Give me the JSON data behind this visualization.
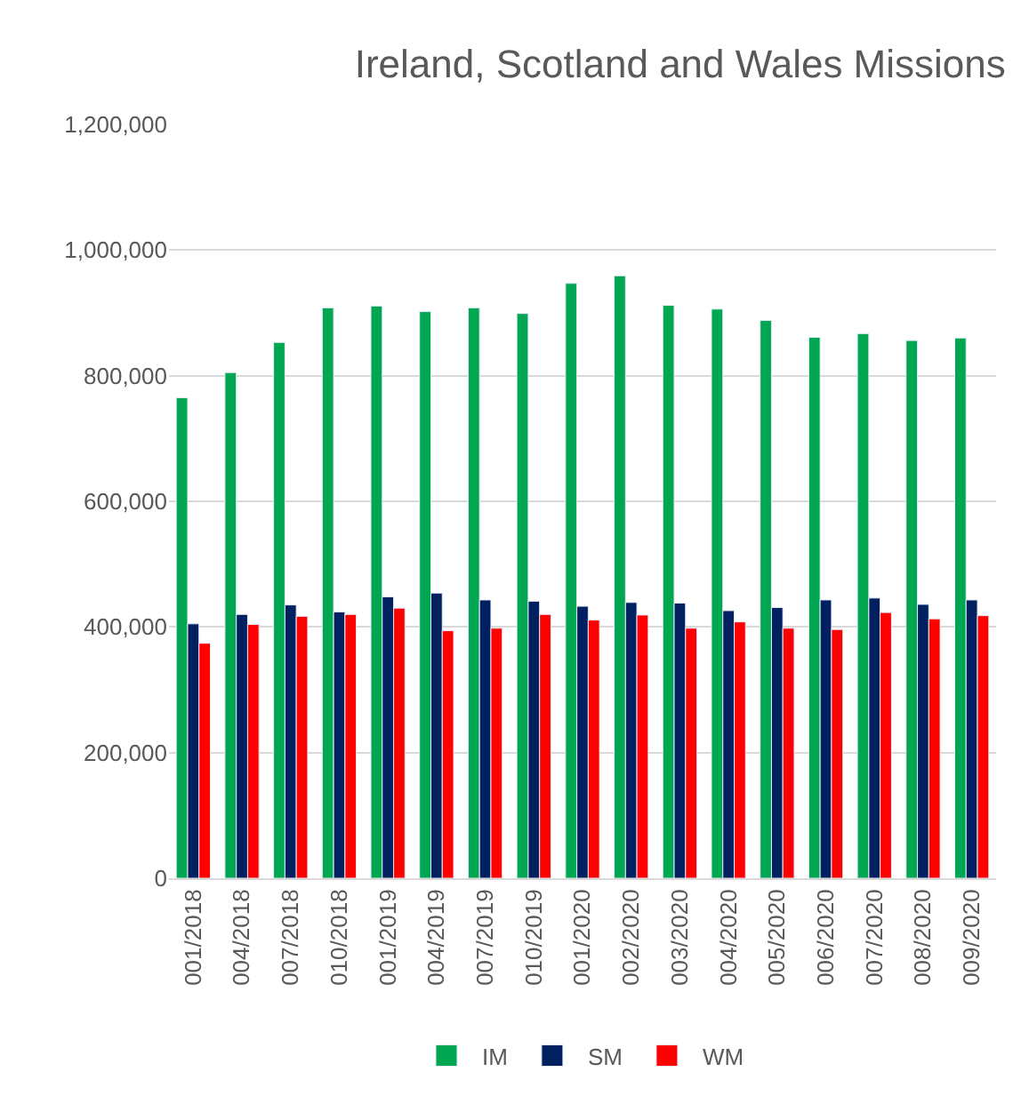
{
  "chart_data": {
    "type": "bar",
    "title": "Ireland, Scotland and Wales Missions",
    "categories": [
      "001/2018",
      "004/2018",
      "007/2018",
      "010/2018",
      "001/2019",
      "004/2019",
      "007/2019",
      "010/2019",
      "001/2020",
      "002/2020",
      "003/2020",
      "004/2020",
      "005/2020",
      "006/2020",
      "007/2020",
      "008/2020",
      "009/2020"
    ],
    "series": [
      {
        "name": "IM",
        "color": "#00a651",
        "values": [
          765000,
          805000,
          853000,
          908000,
          911000,
          902000,
          908000,
          899000,
          947000,
          959000,
          912000,
          906000,
          888000,
          861000,
          867000,
          856000,
          860000
        ]
      },
      {
        "name": "SM",
        "color": "#002060",
        "values": [
          405000,
          420000,
          435000,
          424000,
          448000,
          454000,
          443000,
          441000,
          433000,
          439000,
          438000,
          426000,
          431000,
          443000,
          446000,
          436000,
          443000
        ]
      },
      {
        "name": "WM",
        "color": "#ff0000",
        "values": [
          374000,
          404000,
          417000,
          420000,
          430000,
          394000,
          398000,
          420000,
          411000,
          419000,
          398000,
          408000,
          398000,
          396000,
          423000,
          413000,
          418000
        ]
      }
    ],
    "ylim": [
      0,
      1200000
    ],
    "yticks": [
      {
        "value": 0,
        "label": "0"
      },
      {
        "value": 200000,
        "label": "200,000"
      },
      {
        "value": 400000,
        "label": "400,000"
      },
      {
        "value": 600000,
        "label": "600,000"
      },
      {
        "value": 800000,
        "label": "800,000"
      },
      {
        "value": 1000000,
        "label": "1,000,000"
      },
      {
        "value": 1200000,
        "label": "1,200,000"
      }
    ],
    "grid": "y",
    "legend": "bottom"
  }
}
